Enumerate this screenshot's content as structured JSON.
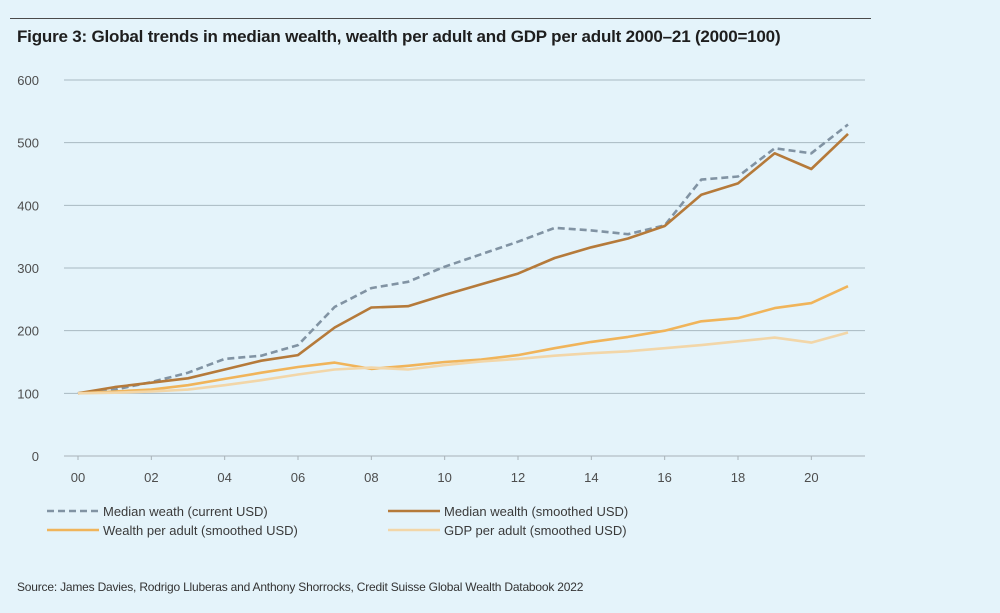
{
  "chart_data": {
    "type": "line",
    "title": "Figure 3: Global trends in median wealth, wealth per adult and GDP per adult 2000–21 (2000=100)",
    "xlabel": "",
    "ylabel": "",
    "xlim": [
      2000,
      2021
    ],
    "ylim": [
      0,
      600
    ],
    "grid": true,
    "legend_position": "bottom",
    "x": [
      2000,
      2001,
      2002,
      2003,
      2004,
      2005,
      2006,
      2007,
      2008,
      2009,
      2010,
      2011,
      2012,
      2013,
      2014,
      2015,
      2016,
      2017,
      2018,
      2019,
      2020,
      2021
    ],
    "x_ticks": [
      2000,
      2002,
      2004,
      2006,
      2008,
      2010,
      2012,
      2014,
      2016,
      2018,
      2020
    ],
    "x_tick_labels": [
      "00",
      "02",
      "04",
      "06",
      "08",
      "10",
      "12",
      "14",
      "16",
      "18",
      "20"
    ],
    "y_ticks": [
      0,
      100,
      200,
      300,
      400,
      500,
      600
    ],
    "y_tick_labels": [
      "0",
      "100",
      "200",
      "300",
      "400",
      "500",
      "600"
    ],
    "series": [
      {
        "name": "Median weath (current USD)",
        "color": "#8193a3",
        "dash": "dashed",
        "values": [
          100,
          106,
          118,
          133,
          155,
          160,
          177,
          238,
          268,
          278,
          302,
          322,
          342,
          364,
          360,
          354,
          368,
          441,
          446,
          491,
          483,
          529
        ]
      },
      {
        "name": "Median wealth (smoothed USD)",
        "color": "#b57a3a",
        "dash": "solid",
        "values": [
          100,
          110,
          117,
          124,
          138,
          152,
          161,
          205,
          237,
          239,
          257,
          274,
          291,
          316,
          333,
          347,
          367,
          417,
          435,
          483,
          458,
          514
        ]
      },
      {
        "name": "Wealth per adult (smoothed USD)",
        "color": "#f0b45a",
        "dash": "solid",
        "values": [
          100,
          103,
          106,
          113,
          123,
          133,
          142,
          149,
          139,
          144,
          150,
          154,
          161,
          172,
          182,
          190,
          200,
          215,
          220,
          236,
          244,
          271
        ]
      },
      {
        "name": "GDP per adult (smoothed USD)",
        "color": "#f2d6a8",
        "dash": "solid",
        "values": [
          100,
          101,
          103,
          106,
          113,
          121,
          130,
          138,
          141,
          138,
          145,
          151,
          155,
          160,
          164,
          167,
          172,
          177,
          183,
          189,
          181,
          197
        ]
      }
    ]
  },
  "source": "Source: James Davies, Rodrigo Lluberas and Anthony Shorrocks, Credit Suisse Global Wealth Databook 2022"
}
